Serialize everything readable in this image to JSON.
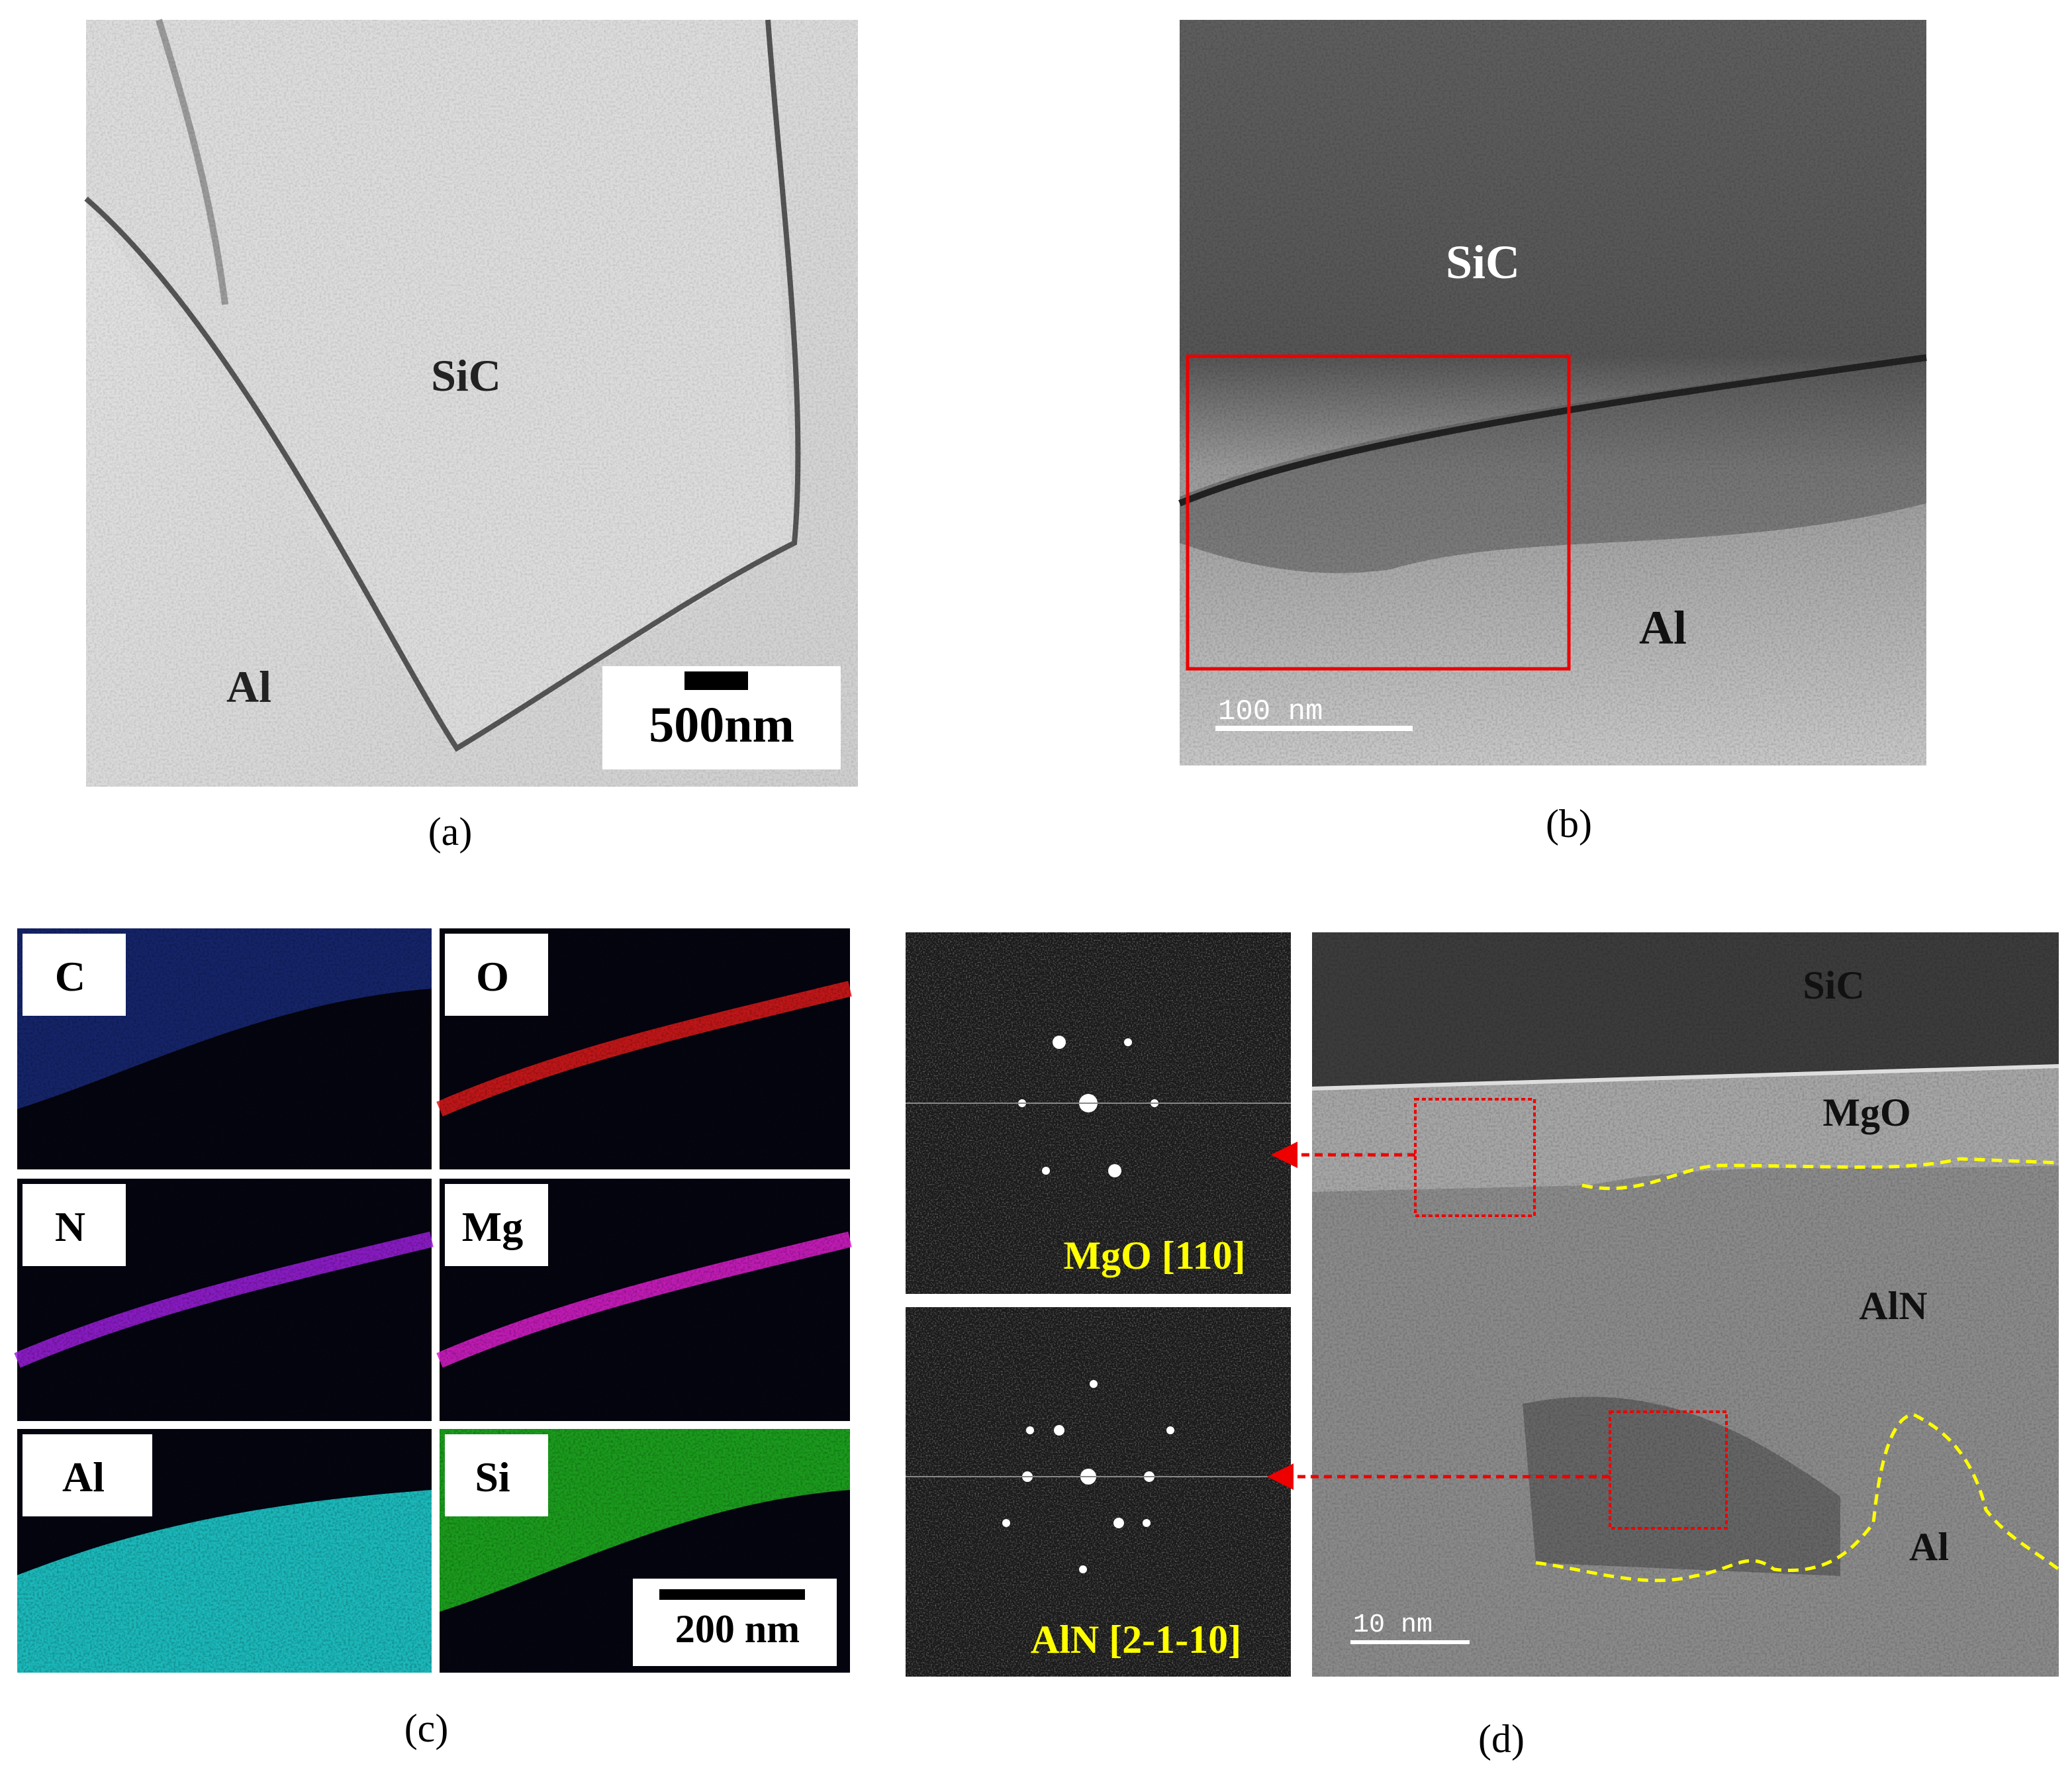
{
  "panels": [
    {
      "caption": "(a)",
      "labels": [
        "SiC",
        "Al"
      ],
      "scale_bar": "500nm"
    },
    {
      "caption": "(b)",
      "labels": [
        "SiC",
        "Al"
      ],
      "scale_bar": "100 nm"
    },
    {
      "caption": "(c)",
      "maps": [
        "C",
        "O",
        "N",
        "Mg",
        "Al",
        "Si"
      ],
      "scale_bar": "200 nm"
    },
    {
      "caption": "(d)",
      "fft_labels": [
        "MgO [110]",
        "AlN [2-1-10]"
      ],
      "labels": [
        "SiC",
        "MgO",
        "AlN",
        "Al"
      ],
      "scale_bar": "10 nm"
    }
  ]
}
